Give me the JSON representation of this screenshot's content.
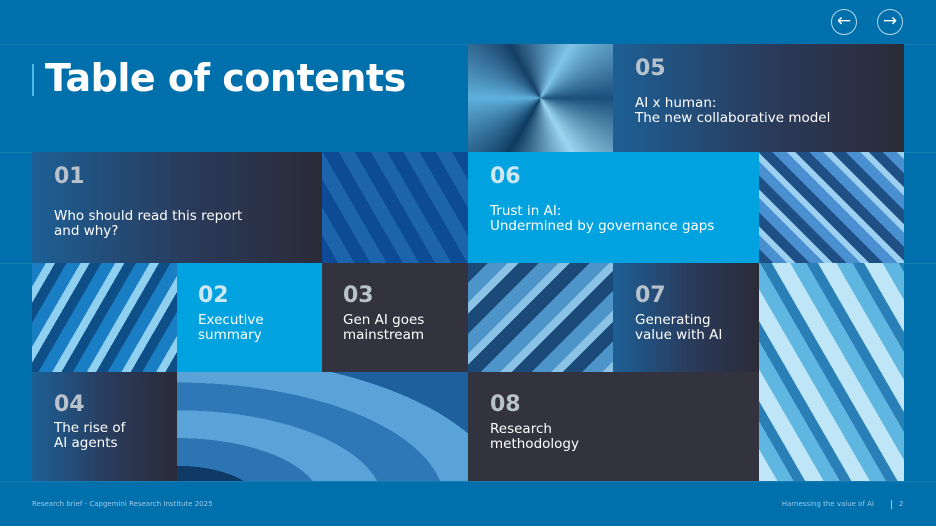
{
  "title": "Table of contents",
  "nav": {
    "prev_icon": "arrow-left-icon",
    "next_icon": "arrow-right-icon"
  },
  "sections": [
    {
      "num": "01",
      "label": "Who should read this report\nand why?"
    },
    {
      "num": "02",
      "label": "Executive\nsummary"
    },
    {
      "num": "03",
      "label": "Gen AI goes\nmainstream"
    },
    {
      "num": "04",
      "label": "The rise of\nAI agents"
    },
    {
      "num": "05",
      "label": "AI x human:\nThe new collaborative model"
    },
    {
      "num": "06",
      "label": "Trust in AI:\nUndermined by governance gaps"
    },
    {
      "num": "07",
      "label": "Generating\nvalue with AI"
    },
    {
      "num": "08",
      "label": "Research\nmethodology"
    }
  ],
  "footer": {
    "left": "Research brief - Capgemini Research Institute 2025",
    "right": "Harnessing the value of AI",
    "page": "2"
  },
  "colors": {
    "background": "#0070ad",
    "bright": "#00a3e0",
    "dark": "#33333f"
  }
}
